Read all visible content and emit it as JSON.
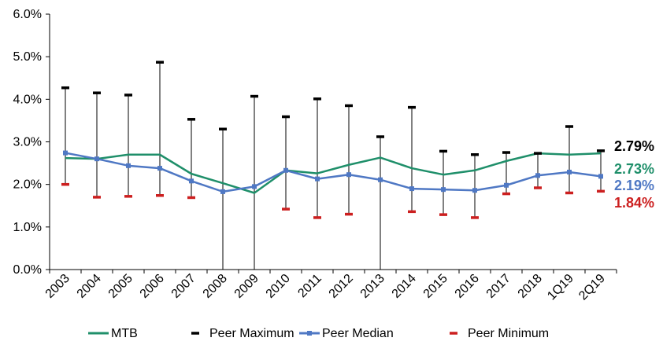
{
  "chart_data": {
    "type": "line",
    "categories": [
      "2003",
      "2004",
      "2005",
      "2006",
      "2007",
      "2008",
      "2009",
      "2010",
      "2011",
      "2012",
      "2013",
      "2014",
      "2015",
      "2016",
      "2017",
      "2018",
      "1Q19",
      "2Q19"
    ],
    "yticks": [
      "0.0%",
      "1.0%",
      "2.0%",
      "3.0%",
      "4.0%",
      "5.0%",
      "6.0%"
    ],
    "ylim": [
      0,
      6
    ],
    "series": [
      {
        "name": "MTB",
        "kind": "line",
        "color": "#1f8f6a",
        "values": [
          2.62,
          2.6,
          2.7,
          2.7,
          2.25,
          2.03,
          1.8,
          2.33,
          2.26,
          2.46,
          2.63,
          2.38,
          2.23,
          2.33,
          2.55,
          2.73,
          2.7,
          2.73
        ]
      },
      {
        "name": "Peer Maximum",
        "kind": "marker",
        "color": "#000000",
        "values": [
          4.27,
          4.15,
          4.1,
          4.87,
          3.53,
          3.3,
          4.07,
          3.59,
          4.01,
          3.85,
          3.12,
          3.81,
          2.78,
          2.7,
          2.75,
          2.73,
          3.36,
          2.79
        ]
      },
      {
        "name": "Peer Median",
        "kind": "line-marker",
        "color": "#4f78c4",
        "values": [
          2.74,
          2.6,
          2.44,
          2.38,
          2.08,
          1.83,
          1.95,
          2.33,
          2.13,
          2.23,
          2.11,
          1.9,
          1.88,
          1.86,
          1.98,
          2.21,
          2.29,
          2.19
        ]
      },
      {
        "name": "Peer Minimum",
        "kind": "marker",
        "color": "#cc1f1f",
        "values": [
          2.0,
          1.7,
          1.72,
          1.74,
          1.69,
          0.0,
          0.0,
          1.42,
          1.22,
          1.3,
          0.0,
          1.36,
          1.29,
          1.22,
          1.78,
          1.92,
          1.8,
          1.84
        ]
      }
    ],
    "end_labels": [
      {
        "text": "2.79%",
        "color": "#000000"
      },
      {
        "text": "2.73%",
        "color": "#1f8f6a"
      },
      {
        "text": "2.19%",
        "color": "#4f78c4"
      },
      {
        "text": "1.84%",
        "color": "#cc1f1f"
      }
    ],
    "legend_position": "bottom"
  }
}
